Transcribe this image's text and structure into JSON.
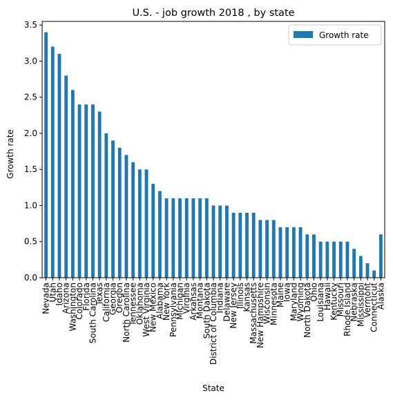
{
  "chart_data": {
    "type": "bar",
    "title": "U.S. - job growth 2018 , by state",
    "xlabel": "State",
    "ylabel": "Growth rate",
    "ylim": [
      0,
      3.55
    ],
    "yticks": [
      "0.0",
      "0.5",
      "1.0",
      "1.5",
      "2.0",
      "2.5",
      "3.0",
      "3.5"
    ],
    "grid": false,
    "legend_position": "top-right",
    "color": "#1f77b4",
    "categories": [
      "Nevada",
      "Utah",
      "Idaho",
      "Arizona",
      "Washington",
      "Colorado",
      "Florida",
      "South Carolina",
      "Texas",
      "California",
      "Georgia",
      "Oregon",
      "North Carolina",
      "Tennessee",
      "Oklahoma",
      "West Virginia",
      "New Mexico",
      "Alabama",
      "New York",
      "Pennsylvania",
      "Michigan",
      "Virginia",
      "Arkansas",
      "Montana",
      "South Dakota",
      "District of Columbia",
      "Indiana",
      "Delaware",
      "New Jersey",
      "Illinois",
      "Kansas",
      "Massachusetts",
      "New Hampshire",
      "Wisconsin",
      "Minnesota",
      "Maine",
      "Iowa",
      "Maryland",
      "Wyoming",
      "North Dakota",
      "Ohio",
      "Louisiana",
      "Hawaii",
      "Kentucky",
      "Missouri",
      "Rhode Island",
      "Nebraska",
      "Mississippi",
      "Vermont",
      "Connecticut",
      "Alaska"
    ],
    "series": [
      {
        "name": "Growth rate",
        "values": [
          3.4,
          3.2,
          3.1,
          2.8,
          2.6,
          2.4,
          2.4,
          2.4,
          2.3,
          2.0,
          1.9,
          1.8,
          1.7,
          1.6,
          1.5,
          1.5,
          1.3,
          1.2,
          1.1,
          1.1,
          1.1,
          1.1,
          1.1,
          1.1,
          1.1,
          1.0,
          1.0,
          1.0,
          0.9,
          0.9,
          0.9,
          0.9,
          0.8,
          0.8,
          0.8,
          0.7,
          0.7,
          0.7,
          0.7,
          0.6,
          0.6,
          0.5,
          0.5,
          0.5,
          0.5,
          0.5,
          0.4,
          0.3,
          0.2,
          0.1,
          0.6
        ]
      }
    ]
  }
}
